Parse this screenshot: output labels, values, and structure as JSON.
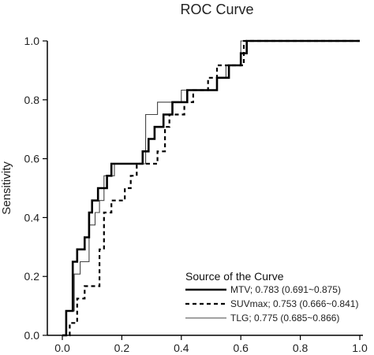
{
  "chart_data": {
    "type": "line",
    "title": "ROC Curve",
    "xlabel": "",
    "ylabel": "Sensitivity",
    "xlim": [
      0,
      1
    ],
    "ylim": [
      0,
      1
    ],
    "xticks": [
      "0.0",
      "0.2",
      "0.4",
      "0.6",
      "0.8",
      "1.0"
    ],
    "yticks": [
      "0.0",
      "0.2",
      "0.4",
      "0.6",
      "0.8",
      "1.0"
    ],
    "legend": {
      "title": "Source of the Curve",
      "placement": "bottom-right",
      "entries": [
        "MTV; 0.783 (0.691~0.875)",
        "SUVmax; 0.753 (0.666~0.841)",
        "TLG; 0.775 (0.685~0.866)"
      ]
    },
    "series": [
      {
        "name": "MTV; 0.783 (0.691~0.875)",
        "style": "thick-solid",
        "color": "#000000",
        "points": [
          [
            0.0,
            0.0
          ],
          [
            0.013,
            0.0
          ],
          [
            0.013,
            0.083
          ],
          [
            0.035,
            0.083
          ],
          [
            0.035,
            0.25
          ],
          [
            0.05,
            0.25
          ],
          [
            0.05,
            0.292
          ],
          [
            0.075,
            0.292
          ],
          [
            0.075,
            0.333
          ],
          [
            0.09,
            0.333
          ],
          [
            0.09,
            0.417
          ],
          [
            0.1,
            0.417
          ],
          [
            0.1,
            0.458
          ],
          [
            0.12,
            0.458
          ],
          [
            0.12,
            0.5
          ],
          [
            0.15,
            0.5
          ],
          [
            0.15,
            0.542
          ],
          [
            0.165,
            0.542
          ],
          [
            0.165,
            0.583
          ],
          [
            0.27,
            0.583
          ],
          [
            0.27,
            0.625
          ],
          [
            0.29,
            0.625
          ],
          [
            0.29,
            0.667
          ],
          [
            0.31,
            0.667
          ],
          [
            0.31,
            0.708
          ],
          [
            0.34,
            0.708
          ],
          [
            0.34,
            0.75
          ],
          [
            0.37,
            0.75
          ],
          [
            0.37,
            0.792
          ],
          [
            0.42,
            0.792
          ],
          [
            0.42,
            0.833
          ],
          [
            0.52,
            0.833
          ],
          [
            0.52,
            0.875
          ],
          [
            0.56,
            0.875
          ],
          [
            0.56,
            0.917
          ],
          [
            0.6,
            0.917
          ],
          [
            0.6,
            0.958
          ],
          [
            0.62,
            0.958
          ],
          [
            0.62,
            1.0
          ],
          [
            1.0,
            1.0
          ]
        ]
      },
      {
        "name": "SUVmax; 0.753 (0.666~0.841)",
        "style": "dashed",
        "color": "#000000",
        "points": [
          [
            0.0,
            0.0
          ],
          [
            0.025,
            0.0
          ],
          [
            0.025,
            0.042
          ],
          [
            0.05,
            0.042
          ],
          [
            0.05,
            0.125
          ],
          [
            0.075,
            0.125
          ],
          [
            0.075,
            0.167
          ],
          [
            0.125,
            0.167
          ],
          [
            0.125,
            0.292
          ],
          [
            0.14,
            0.292
          ],
          [
            0.14,
            0.417
          ],
          [
            0.165,
            0.417
          ],
          [
            0.165,
            0.458
          ],
          [
            0.21,
            0.458
          ],
          [
            0.21,
            0.5
          ],
          [
            0.23,
            0.5
          ],
          [
            0.23,
            0.542
          ],
          [
            0.25,
            0.542
          ],
          [
            0.25,
            0.583
          ],
          [
            0.32,
            0.583
          ],
          [
            0.32,
            0.625
          ],
          [
            0.345,
            0.625
          ],
          [
            0.345,
            0.708
          ],
          [
            0.36,
            0.708
          ],
          [
            0.36,
            0.75
          ],
          [
            0.41,
            0.75
          ],
          [
            0.41,
            0.792
          ],
          [
            0.44,
            0.792
          ],
          [
            0.44,
            0.833
          ],
          [
            0.49,
            0.833
          ],
          [
            0.49,
            0.875
          ],
          [
            0.52,
            0.875
          ],
          [
            0.52,
            0.917
          ],
          [
            0.61,
            0.917
          ],
          [
            0.61,
            1.0
          ],
          [
            1.0,
            1.0
          ]
        ]
      },
      {
        "name": "TLG; 0.775 (0.685~0.866)",
        "style": "thin-solid",
        "color": "#444444",
        "points": [
          [
            0.0,
            0.0
          ],
          [
            0.013,
            0.0
          ],
          [
            0.013,
            0.083
          ],
          [
            0.04,
            0.083
          ],
          [
            0.04,
            0.208
          ],
          [
            0.06,
            0.208
          ],
          [
            0.06,
            0.25
          ],
          [
            0.09,
            0.25
          ],
          [
            0.09,
            0.375
          ],
          [
            0.11,
            0.375
          ],
          [
            0.11,
            0.417
          ],
          [
            0.125,
            0.417
          ],
          [
            0.125,
            0.458
          ],
          [
            0.14,
            0.458
          ],
          [
            0.14,
            0.542
          ],
          [
            0.175,
            0.542
          ],
          [
            0.175,
            0.583
          ],
          [
            0.28,
            0.583
          ],
          [
            0.28,
            0.75
          ],
          [
            0.32,
            0.75
          ],
          [
            0.32,
            0.792
          ],
          [
            0.4,
            0.792
          ],
          [
            0.4,
            0.833
          ],
          [
            0.52,
            0.833
          ],
          [
            0.52,
            0.875
          ],
          [
            0.55,
            0.875
          ],
          [
            0.55,
            0.917
          ],
          [
            0.6,
            0.917
          ],
          [
            0.6,
            1.0
          ],
          [
            1.0,
            1.0
          ]
        ]
      }
    ]
  }
}
